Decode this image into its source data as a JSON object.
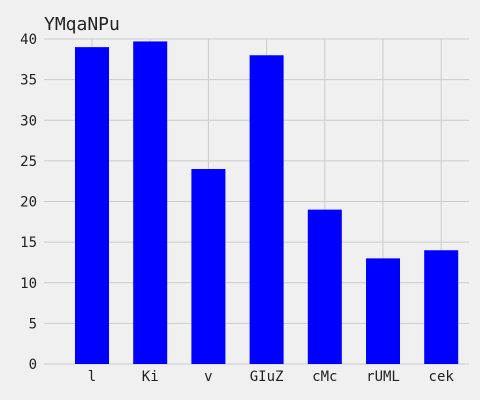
{
  "chart_data": {
    "type": "bar",
    "title": "YMqaNPu",
    "xlabel": "",
    "ylabel": "",
    "categories": [
      "l",
      "Ki",
      "v",
      "GIuZ",
      "cMc",
      "rUML",
      "cek"
    ],
    "values": [
      39,
      39.7,
      24,
      38,
      19,
      13,
      14
    ],
    "ylim": [
      0,
      40
    ],
    "yticks": [
      0,
      5,
      10,
      15,
      20,
      25,
      30,
      35,
      40
    ],
    "grid": true,
    "bar_color": "#0000ff",
    "background": "#f0f0f0"
  }
}
